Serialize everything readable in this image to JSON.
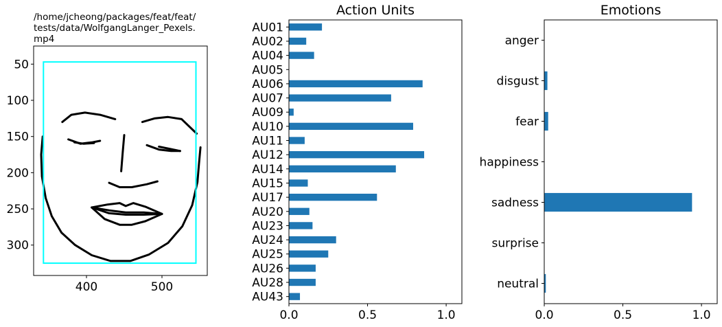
{
  "face_panel": {
    "title": "/home/jcheong/packages/feat/feat/tests/data/WolfgangLanger_Pexels.mp4",
    "xticks": [
      400,
      500
    ],
    "yticks": [
      50,
      100,
      150,
      200,
      250,
      300
    ],
    "xlim": [
      330,
      560
    ],
    "ylim": [
      342,
      25
    ],
    "box_color": "#00ffff",
    "box": {
      "x0": 343,
      "x1": 545,
      "y0": 47,
      "y1": 325
    },
    "landmark_color": "#000000"
  },
  "chart_data": [
    {
      "type": "bar",
      "orientation": "horizontal",
      "title": "Action Units",
      "categories": [
        "AU01",
        "AU02",
        "AU04",
        "AU05",
        "AU06",
        "AU07",
        "AU09",
        "AU10",
        "AU11",
        "AU12",
        "AU14",
        "AU15",
        "AU17",
        "AU20",
        "AU23",
        "AU24",
        "AU25",
        "AU26",
        "AU28",
        "AU43"
      ],
      "values": [
        0.21,
        0.11,
        0.16,
        0.0,
        0.85,
        0.65,
        0.03,
        0.79,
        0.1,
        0.86,
        0.68,
        0.12,
        0.56,
        0.13,
        0.15,
        0.3,
        0.25,
        0.17,
        0.17,
        0.07
      ],
      "xlim": [
        0,
        1.1
      ],
      "xticks": [
        "0.0",
        "0.5",
        "1.0"
      ],
      "color": "#1f77b4"
    },
    {
      "type": "bar",
      "orientation": "horizontal",
      "title": "Emotions",
      "categories": [
        "anger",
        "disgust",
        "fear",
        "happiness",
        "sadness",
        "surprise",
        "neutral"
      ],
      "values": [
        0.0,
        0.02,
        0.025,
        0.0,
        0.94,
        0.0,
        0.01
      ],
      "xlim": [
        0,
        1.1
      ],
      "xticks": [
        "0.0",
        "0.5",
        "1.0"
      ],
      "color": "#1f77b4"
    }
  ]
}
